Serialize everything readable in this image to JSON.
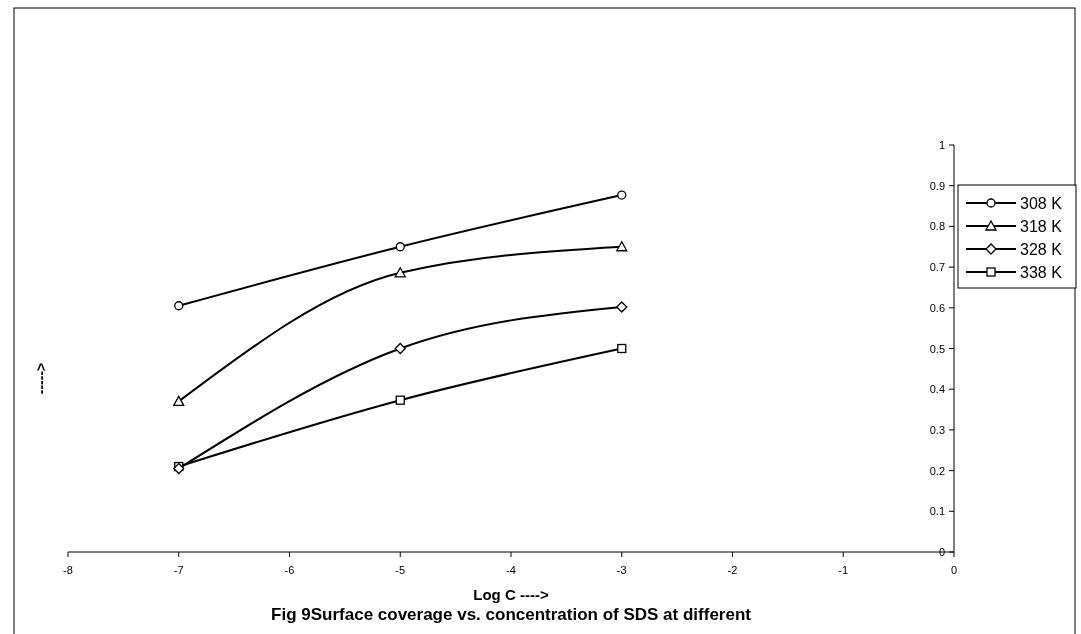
{
  "chart_data": {
    "type": "line",
    "title": "Fig 9Surface coverage vs. concentration of SDS at different",
    "xlabel": "Log C ---->",
    "ylabel": "----->",
    "xlim": [
      -8,
      0
    ],
    "xticks": [
      -8,
      -7,
      -6,
      -5,
      -4,
      -3,
      -2,
      -1,
      0
    ],
    "ylim": [
      0,
      1
    ],
    "yticks": [
      0,
      0.1,
      0.2,
      0.3,
      0.4,
      0.5,
      0.6,
      0.7,
      0.8,
      0.9,
      1
    ],
    "grid": false,
    "legend": "right",
    "series": [
      {
        "name": "308 K",
        "color": "#000000",
        "marker": "circle",
        "x": [
          -7,
          -5,
          -3
        ],
        "values": [
          0.605,
          0.75,
          0.877
        ]
      },
      {
        "name": "318 K",
        "color": "#000000",
        "marker": "triangle",
        "x": [
          -7,
          -5,
          -3
        ],
        "values": [
          0.37,
          0.686,
          0.75
        ]
      },
      {
        "name": "328 K",
        "color": "#000000",
        "marker": "diamond",
        "x": [
          -7,
          -5,
          -3
        ],
        "values": [
          0.205,
          0.5,
          0.602
        ]
      },
      {
        "name": "338 K",
        "color": "#000000",
        "marker": "square",
        "x": [
          -7,
          -5,
          -3
        ],
        "values": [
          0.21,
          0.373,
          0.5
        ]
      }
    ]
  }
}
